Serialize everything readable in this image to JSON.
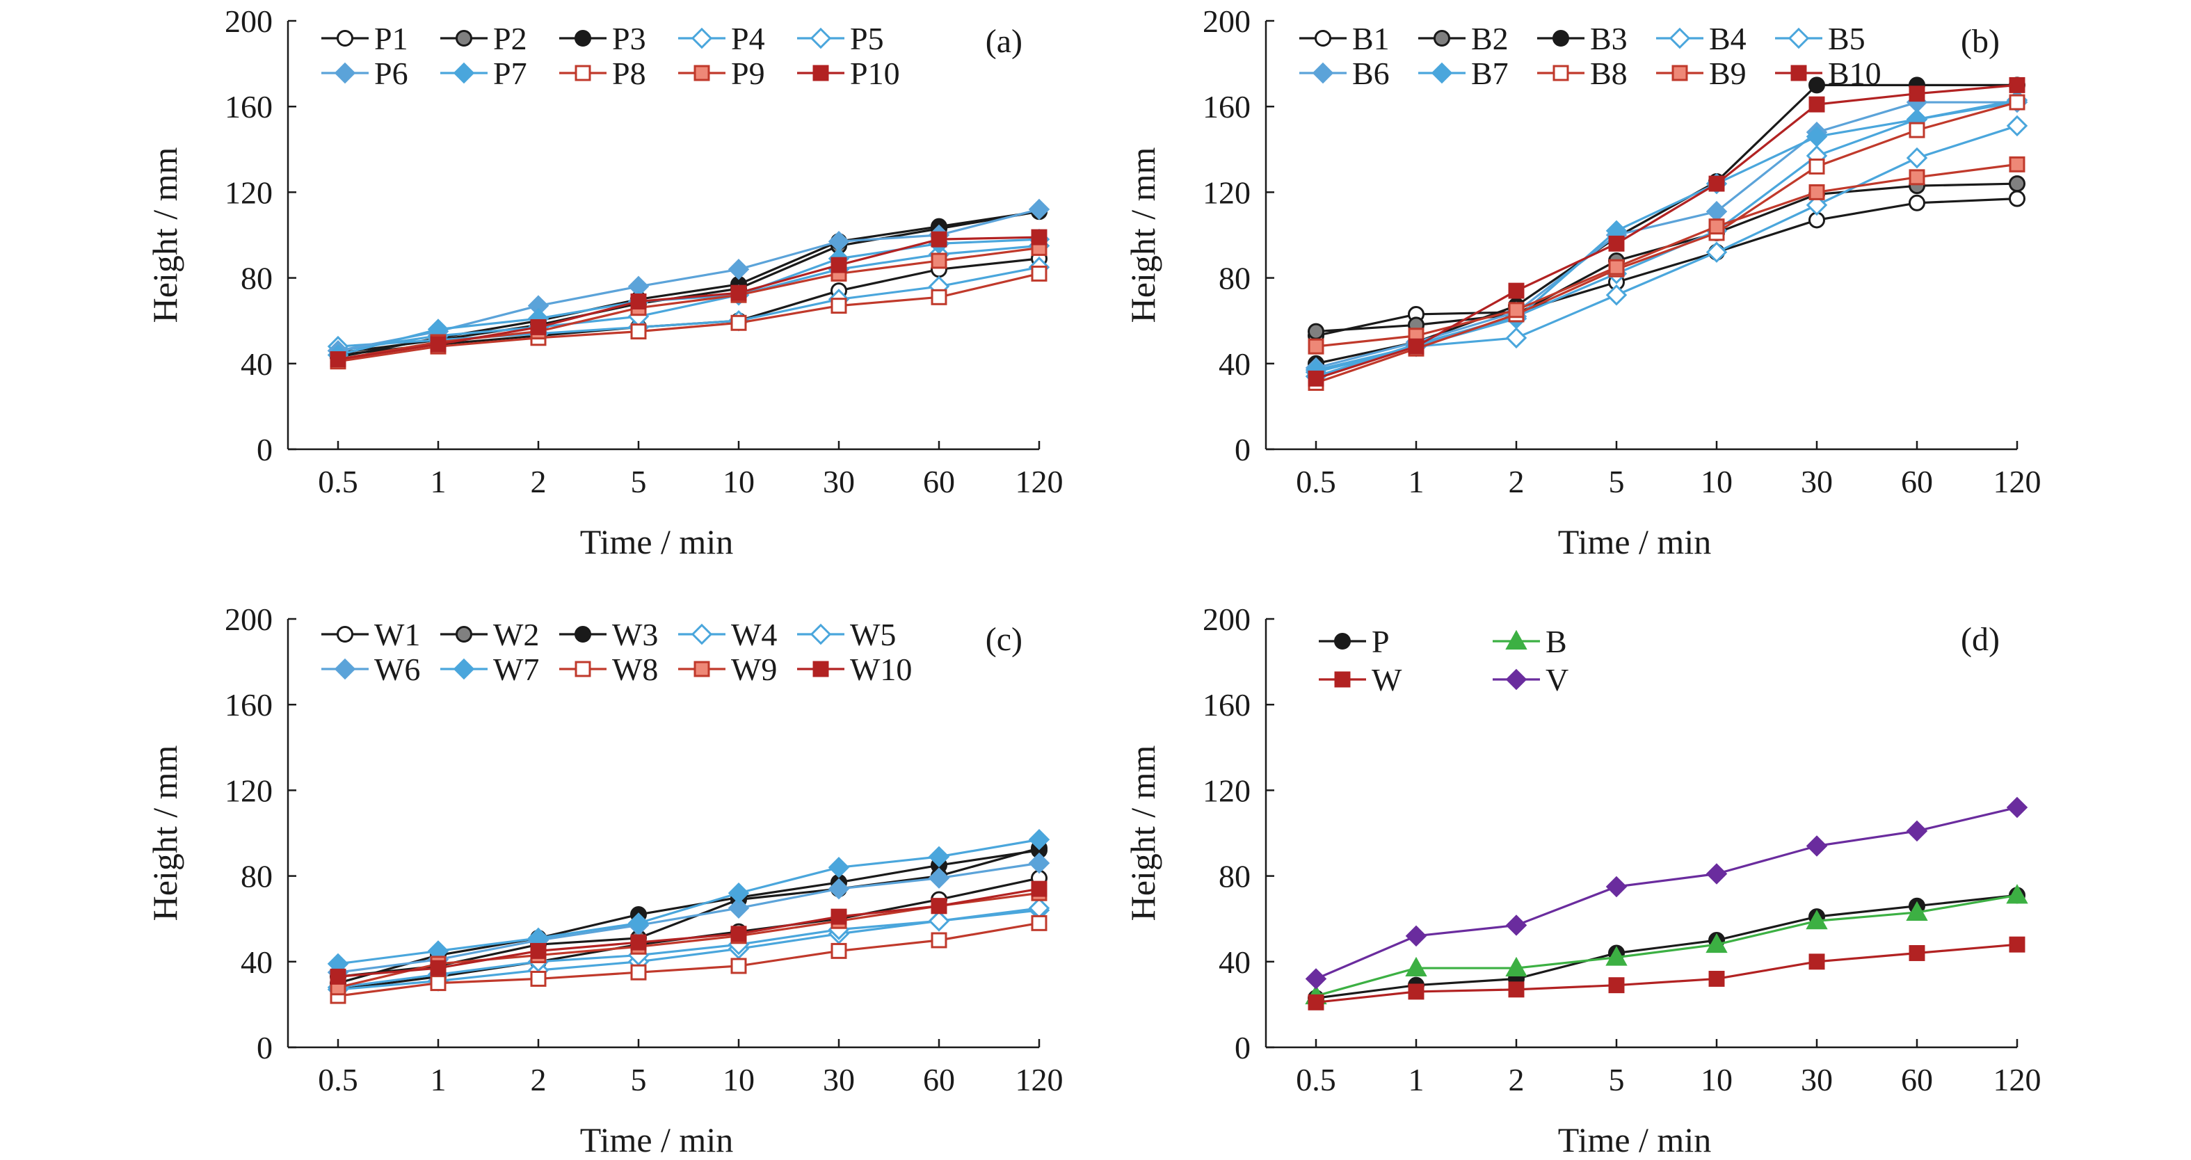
{
  "styles": {
    "black": "#1a1a1a",
    "grey": "#808080",
    "blue": "#4aa6dc",
    "blue_dark": "#5ba3d9",
    "red": "#c0392b",
    "red_light": "#ee8877",
    "dark_red": "#b22222",
    "green": "#3cb043",
    "purple": "#6a2c9e"
  },
  "chart_data": [
    {
      "type": "line",
      "panel_label": "(a)",
      "xlabel": "Time / min",
      "ylabel": "Height / mm",
      "categories": [
        "0.5",
        "1",
        "2",
        "5",
        "10",
        "30",
        "60",
        "120"
      ],
      "ylim": [
        0,
        200
      ],
      "yticks": [
        "0",
        "40",
        "80",
        "120",
        "160",
        "200"
      ],
      "legend_placement": "top-left",
      "legend_columns": 5,
      "series": [
        {
          "name": "P1",
          "marker": "circle-open",
          "color": "black",
          "values": [
            44,
            49,
            53,
            57,
            60,
            74,
            84,
            89
          ]
        },
        {
          "name": "P2",
          "marker": "circle-grey",
          "color": "black",
          "values": [
            45,
            51,
            58,
            68,
            75,
            95,
            103,
            111
          ]
        },
        {
          "name": "P3",
          "marker": "circle-filled",
          "color": "black",
          "values": [
            43,
            52,
            60,
            70,
            77,
            97,
            104,
            111
          ]
        },
        {
          "name": "P4",
          "marker": "diamond-open",
          "color": "blue",
          "values": [
            48,
            51,
            54,
            57,
            60,
            70,
            76,
            85
          ]
        },
        {
          "name": "P5",
          "marker": "diamond-open",
          "color": "blue",
          "values": [
            46,
            53,
            57,
            62,
            72,
            84,
            91,
            95
          ]
        },
        {
          "name": "P6",
          "marker": "diamond-filled",
          "color": "blue_dark",
          "values": [
            46,
            55,
            67,
            76,
            84,
            97,
            100,
            112
          ]
        },
        {
          "name": "P7",
          "marker": "diamond-filled",
          "color": "blue",
          "values": [
            44,
            56,
            61,
            69,
            72,
            89,
            96,
            98
          ]
        },
        {
          "name": "P8",
          "marker": "square-open",
          "color": "red",
          "values": [
            41,
            48,
            52,
            55,
            59,
            67,
            71,
            82
          ]
        },
        {
          "name": "P9",
          "marker": "square-light",
          "color": "red",
          "values": [
            42,
            50,
            55,
            66,
            72,
            82,
            88,
            94
          ]
        },
        {
          "name": "P10",
          "marker": "square-filled",
          "color": "dark_red",
          "values": [
            42,
            49,
            57,
            69,
            73,
            86,
            98,
            99
          ]
        }
      ]
    },
    {
      "type": "line",
      "panel_label": "(b)",
      "xlabel": "Time / min",
      "ylabel": "Height / mm",
      "categories": [
        "0.5",
        "1",
        "2",
        "5",
        "10",
        "30",
        "60",
        "120"
      ],
      "ylim": [
        0,
        200
      ],
      "yticks": [
        "0",
        "40",
        "80",
        "120",
        "160",
        "200"
      ],
      "legend_placement": "top-left",
      "legend_columns": 5,
      "series": [
        {
          "name": "B1",
          "marker": "circle-open",
          "color": "black",
          "values": [
            53,
            63,
            64,
            78,
            92,
            107,
            115,
            117
          ]
        },
        {
          "name": "B2",
          "marker": "circle-grey",
          "color": "black",
          "values": [
            55,
            58,
            63,
            88,
            101,
            119,
            123,
            124
          ]
        },
        {
          "name": "B3",
          "marker": "circle-filled",
          "color": "black",
          "values": [
            40,
            50,
            67,
            99,
            125,
            170,
            170,
            170
          ]
        },
        {
          "name": "B4",
          "marker": "diamond-open",
          "color": "blue",
          "values": [
            36,
            48,
            52,
            72,
            92,
            114,
            136,
            151
          ]
        },
        {
          "name": "B5",
          "marker": "diamond-open",
          "color": "blue",
          "values": [
            34,
            49,
            62,
            82,
            102,
            137,
            154,
            162
          ]
        },
        {
          "name": "B6",
          "marker": "diamond-filled",
          "color": "blue_dark",
          "values": [
            38,
            50,
            64,
            100,
            111,
            148,
            162,
            162
          ]
        },
        {
          "name": "B7",
          "marker": "diamond-filled",
          "color": "blue",
          "values": [
            37,
            48,
            61,
            102,
            124,
            146,
            154,
            163
          ]
        },
        {
          "name": "B8",
          "marker": "square-open",
          "color": "red",
          "values": [
            31,
            47,
            63,
            84,
            101,
            132,
            149,
            162
          ]
        },
        {
          "name": "B9",
          "marker": "square-light",
          "color": "red",
          "values": [
            48,
            53,
            65,
            85,
            104,
            120,
            127,
            133
          ]
        },
        {
          "name": "B10",
          "marker": "square-filled",
          "color": "dark_red",
          "values": [
            33,
            48,
            74,
            96,
            124,
            161,
            166,
            170
          ]
        }
      ]
    },
    {
      "type": "line",
      "panel_label": "(c)",
      "xlabel": "Time / min",
      "ylabel": "Height / mm",
      "categories": [
        "0.5",
        "1",
        "2",
        "5",
        "10",
        "30",
        "60",
        "120"
      ],
      "ylim": [
        0,
        200
      ],
      "yticks": [
        "0",
        "40",
        "80",
        "120",
        "160",
        "200"
      ],
      "legend_placement": "top-left",
      "legend_columns": 5,
      "series": [
        {
          "name": "W1",
          "marker": "circle-open",
          "color": "black",
          "values": [
            27,
            33,
            40,
            48,
            54,
            60,
            69,
            79
          ]
        },
        {
          "name": "W2",
          "marker": "circle-grey",
          "color": "black",
          "values": [
            33,
            38,
            48,
            51,
            69,
            74,
            80,
            93
          ]
        },
        {
          "name": "W3",
          "marker": "circle-filled",
          "color": "black",
          "values": [
            30,
            43,
            51,
            62,
            70,
            77,
            85,
            92
          ]
        },
        {
          "name": "W4",
          "marker": "diamond-open",
          "color": "blue",
          "values": [
            27,
            31,
            36,
            40,
            46,
            53,
            59,
            64
          ]
        },
        {
          "name": "W5",
          "marker": "diamond-open",
          "color": "blue",
          "values": [
            28,
            34,
            40,
            43,
            48,
            55,
            59,
            65
          ]
        },
        {
          "name": "W6",
          "marker": "diamond-filled",
          "color": "blue_dark",
          "values": [
            35,
            41,
            50,
            57,
            65,
            74,
            79,
            86
          ]
        },
        {
          "name": "W7",
          "marker": "diamond-filled",
          "color": "blue",
          "values": [
            39,
            45,
            51,
            58,
            72,
            84,
            89,
            97
          ]
        },
        {
          "name": "W8",
          "marker": "square-open",
          "color": "red",
          "values": [
            24,
            30,
            32,
            35,
            38,
            45,
            50,
            58
          ]
        },
        {
          "name": "W9",
          "marker": "square-light",
          "color": "red",
          "values": [
            28,
            39,
            43,
            47,
            52,
            59,
            66,
            72
          ]
        },
        {
          "name": "W10",
          "marker": "square-filled",
          "color": "dark_red",
          "values": [
            33,
            37,
            45,
            49,
            53,
            61,
            66,
            74
          ]
        }
      ]
    },
    {
      "type": "line",
      "panel_label": "(d)",
      "xlabel": "Time / min",
      "ylabel": "Height / mm",
      "categories": [
        "0.5",
        "1",
        "2",
        "5",
        "10",
        "30",
        "60",
        "120"
      ],
      "ylim": [
        0,
        200
      ],
      "yticks": [
        "0",
        "40",
        "80",
        "120",
        "160",
        "200"
      ],
      "legend_placement": "top-left",
      "legend_columns": 2,
      "series": [
        {
          "name": "P",
          "marker": "circle-filled",
          "color": "black",
          "values": [
            23,
            29,
            32,
            44,
            50,
            61,
            66,
            71
          ]
        },
        {
          "name": "B",
          "marker": "triangle-filled",
          "color": "green",
          "values": [
            24,
            37,
            37,
            42,
            48,
            59,
            63,
            71
          ]
        },
        {
          "name": "W",
          "marker": "square-filled",
          "color": "dark_red",
          "values": [
            21,
            26,
            27,
            29,
            32,
            40,
            44,
            48
          ]
        },
        {
          "name": "V",
          "marker": "diamond-filled",
          "color": "purple",
          "values": [
            32,
            52,
            57,
            75,
            81,
            94,
            101,
            112
          ]
        }
      ]
    }
  ]
}
